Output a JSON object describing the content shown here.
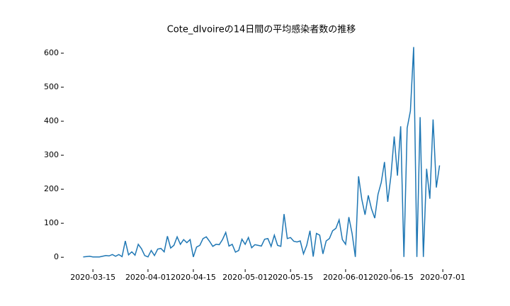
{
  "chart_data": {
    "type": "line",
    "title": "Cote_dIvoireの14日間の平均感染者数の推移",
    "x": [
      "2020-03-12",
      "2020-03-13",
      "2020-03-14",
      "2020-03-15",
      "2020-03-16",
      "2020-03-17",
      "2020-03-18",
      "2020-03-19",
      "2020-03-20",
      "2020-03-21",
      "2020-03-22",
      "2020-03-23",
      "2020-03-24",
      "2020-03-25",
      "2020-03-26",
      "2020-03-27",
      "2020-03-28",
      "2020-03-29",
      "2020-03-30",
      "2020-03-31",
      "2020-04-01",
      "2020-04-02",
      "2020-04-03",
      "2020-04-04",
      "2020-04-05",
      "2020-04-06",
      "2020-04-07",
      "2020-04-08",
      "2020-04-09",
      "2020-04-10",
      "2020-04-11",
      "2020-04-12",
      "2020-04-13",
      "2020-04-14",
      "2020-04-15",
      "2020-04-16",
      "2020-04-17",
      "2020-04-18",
      "2020-04-19",
      "2020-04-20",
      "2020-04-21",
      "2020-04-22",
      "2020-04-23",
      "2020-04-24",
      "2020-04-25",
      "2020-04-26",
      "2020-04-27",
      "2020-04-28",
      "2020-04-29",
      "2020-04-30",
      "2020-05-01",
      "2020-05-02",
      "2020-05-03",
      "2020-05-04",
      "2020-05-05",
      "2020-05-06",
      "2020-05-07",
      "2020-05-08",
      "2020-05-09",
      "2020-05-10",
      "2020-05-11",
      "2020-05-12",
      "2020-05-13",
      "2020-05-14",
      "2020-05-15",
      "2020-05-16",
      "2020-05-17",
      "2020-05-18",
      "2020-05-19",
      "2020-05-20",
      "2020-05-21",
      "2020-05-22",
      "2020-05-23",
      "2020-05-24",
      "2020-05-25",
      "2020-05-26",
      "2020-05-27",
      "2020-05-28",
      "2020-05-29",
      "2020-05-30",
      "2020-05-31",
      "2020-06-01",
      "2020-06-02",
      "2020-06-03",
      "2020-06-04",
      "2020-06-05",
      "2020-06-06",
      "2020-06-07",
      "2020-06-08",
      "2020-06-09",
      "2020-06-10",
      "2020-06-11",
      "2020-06-12",
      "2020-06-13",
      "2020-06-14",
      "2020-06-15",
      "2020-06-16",
      "2020-06-17",
      "2020-06-18",
      "2020-06-19",
      "2020-06-20",
      "2020-06-21",
      "2020-06-22",
      "2020-06-23",
      "2020-06-24",
      "2020-06-25",
      "2020-06-26",
      "2020-06-27",
      "2020-06-28",
      "2020-06-29",
      "2020-06-30"
    ],
    "values": [
      1,
      2,
      3,
      1,
      1,
      1,
      3,
      5,
      4,
      8,
      3,
      8,
      2,
      48,
      7,
      16,
      6,
      38,
      25,
      5,
      1,
      20,
      5,
      24,
      26,
      16,
      62,
      27,
      35,
      60,
      38,
      52,
      43,
      52,
      1,
      30,
      35,
      55,
      60,
      47,
      32,
      38,
      37,
      52,
      73,
      33,
      38,
      15,
      20,
      53,
      38,
      58,
      28,
      37,
      35,
      33,
      53,
      55,
      32,
      65,
      35,
      32,
      127,
      55,
      58,
      47,
      45,
      48,
      10,
      35,
      78,
      2,
      70,
      65,
      10,
      48,
      55,
      78,
      85,
      110,
      52,
      38,
      118,
      70,
      1,
      238,
      170,
      125,
      182,
      142,
      115,
      185,
      220,
      280,
      163,
      240,
      355,
      240,
      385,
      1,
      380,
      430,
      618,
      1,
      412,
      1,
      260,
      172,
      405,
      205,
      270
    ],
    "color": "#1f77b4",
    "xlim": [
      "2020-03-06",
      "2020-07-06"
    ],
    "xticks": [
      "2020-03-15",
      "2020-04-01",
      "2020-04-15",
      "2020-05-01",
      "2020-05-15",
      "2020-06-01",
      "2020-06-15",
      "2020-07-01"
    ],
    "ylim": [
      -35,
      648
    ],
    "yticks": [
      0,
      100,
      200,
      300,
      400,
      500,
      600
    ]
  }
}
